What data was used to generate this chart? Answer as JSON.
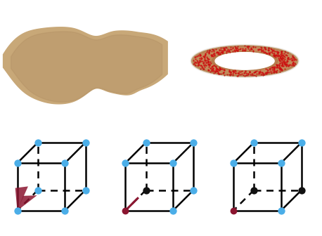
{
  "fig_width": 4.58,
  "fig_height": 3.36,
  "dpi": 100,
  "cube_blue": "#4BAEE8",
  "cube_black": "#111111",
  "cube_darkred": "#8B1530",
  "cube_crimson": "#8B1530",
  "cube_lw": 1.8,
  "dot_size_blue": 55,
  "dot_size_black": 55,
  "dot_size_darkred": 50,
  "cube_s": 0.6,
  "cube_ox": 0.26,
  "cube_oy": 0.26
}
